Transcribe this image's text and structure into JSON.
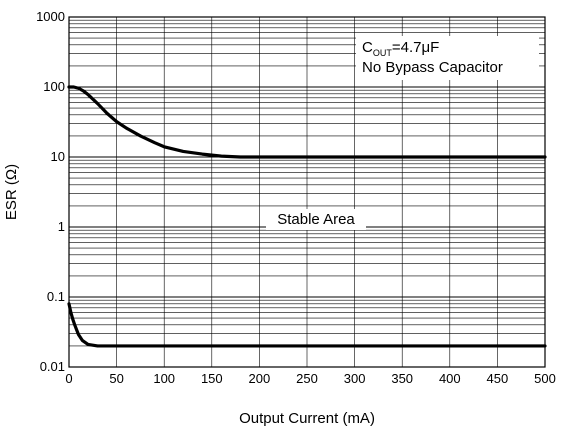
{
  "chart_data": {
    "type": "line",
    "x_scale": "linear",
    "y_scale": "log",
    "xlim": [
      0,
      500
    ],
    "ylim": [
      0.01,
      1000
    ],
    "x_ticks": [
      0,
      50,
      100,
      150,
      200,
      250,
      300,
      350,
      400,
      450,
      500
    ],
    "x_tick_labels": [
      "0",
      "50",
      "100",
      "150",
      "200",
      "250",
      "300",
      "350",
      "400",
      "450",
      "500"
    ],
    "y_ticks": [
      0.01,
      0.1,
      1,
      10,
      100,
      1000
    ],
    "y_tick_labels": [
      "0.01",
      "0.1",
      "1",
      "10",
      "100",
      "1000"
    ],
    "xlabel": "Output Current (mA)",
    "ylabel": "ESR (Ω)",
    "grid": true,
    "legend": {
      "position": "top-right",
      "line1_prefix": "C",
      "line1_sub": "OUT",
      "line1_suffix": "=4.7μF",
      "line2": "No Bypass Capacitor"
    },
    "annotations": [
      {
        "text": "Stable Area"
      }
    ],
    "series": [
      {
        "x": [
          0,
          5,
          10,
          15,
          20,
          30,
          40,
          50,
          60,
          75,
          90,
          100,
          120,
          140,
          160,
          180,
          200,
          300,
          400,
          500
        ],
        "y": [
          100,
          100,
          96,
          88,
          78,
          58,
          42,
          32,
          26,
          20,
          16,
          14,
          12,
          11,
          10.3,
          10,
          10,
          10,
          10,
          10
        ]
      },
      {
        "x": [
          0,
          2,
          4,
          6,
          8,
          10,
          14,
          20,
          30,
          40,
          100,
          200,
          300,
          400,
          500
        ],
        "y": [
          0.08,
          0.06,
          0.048,
          0.04,
          0.034,
          0.029,
          0.024,
          0.021,
          0.02,
          0.02,
          0.02,
          0.02,
          0.02,
          0.02,
          0.02
        ]
      }
    ]
  }
}
